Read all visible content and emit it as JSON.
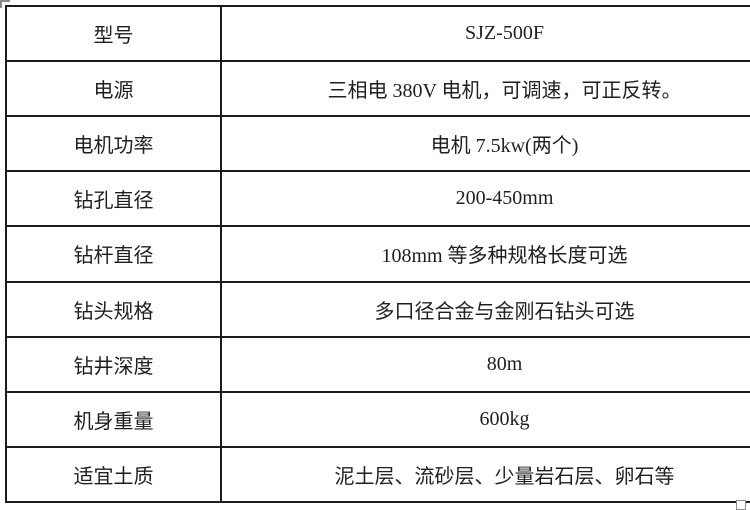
{
  "table": {
    "title": "product-specification-table",
    "columns": [
      "spec-name",
      "spec-value"
    ],
    "rows": [
      {
        "label": "型号",
        "value": "SJZ-500F"
      },
      {
        "label": "电源",
        "value": "三相电 380V 电机，可调速，可正反转。"
      },
      {
        "label": "电机功率",
        "value": "电机 7.5kw(两个)"
      },
      {
        "label": "钻孔直径",
        "value": "200-450mm"
      },
      {
        "label": "钻杆直径",
        "value": "108mm 等多种规格长度可选"
      },
      {
        "label": "钻头规格",
        "value": "多口径合金与金刚石钻头可选"
      },
      {
        "label": "钻井深度",
        "value": "80m"
      },
      {
        "label": "机身重量",
        "value": "600kg"
      },
      {
        "label": "适宜土质",
        "value": "泥土层、流砂层、少量岩石层、卵石等"
      }
    ],
    "colors": {
      "border": "#1c1c1c",
      "text": "#1f1f1f",
      "background": "#ffffff",
      "handle": "#8c8c8c"
    }
  }
}
